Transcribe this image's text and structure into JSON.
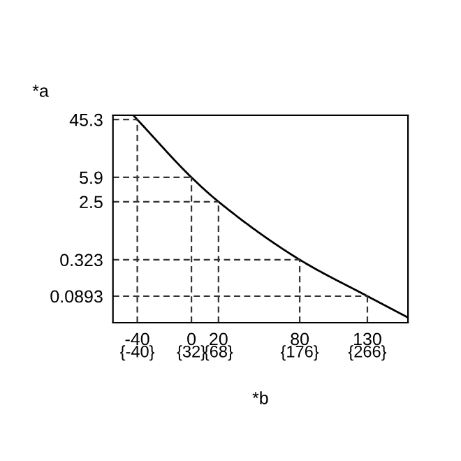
{
  "chart_data": {
    "type": "line",
    "xlabel": "*b",
    "ylabel": "*a",
    "x": [
      -43,
      -40,
      0,
      20,
      80,
      130,
      160
    ],
    "series": [
      {
        "color": "#000000",
        "values": [
          52.8,
          45.3,
          5.9,
          2.5,
          0.323,
          0.0893,
          0.042
        ]
      }
    ],
    "log": "y",
    "xlim": [
      -58,
      160
    ],
    "ylim": [
      0.035,
      52.8
    ],
    "xticks": [
      -40,
      0,
      20,
      80,
      130
    ],
    "x2lim": [
      -72.4,
      320
    ],
    "x2ticks": [
      {
        "value": -40,
        "label": "{-40}"
      },
      {
        "value": 32,
        "label": "{32}"
      },
      {
        "value": 68,
        "label": "{68}"
      },
      {
        "value": 176,
        "label": "{176}"
      },
      {
        "value": 266,
        "label": "{266}"
      }
    ],
    "yticks": [
      45.3,
      5.9,
      2.5,
      0.323,
      0.0893
    ],
    "ref_lines": [
      {
        "axis": "y",
        "value": 45.3,
        "color": "#333333",
        "line_style": "dashed"
      },
      {
        "axis": "y",
        "value": 5.9,
        "color": "#333333",
        "line_style": "dashed"
      },
      {
        "axis": "y",
        "value": 2.5,
        "color": "#333333",
        "line_style": "dashed"
      },
      {
        "axis": "y",
        "value": 0.323,
        "color": "#333333",
        "line_style": "dashed"
      },
      {
        "axis": "y",
        "value": 0.0893,
        "color": "#333333",
        "line_style": "dashed"
      },
      {
        "axis": "x",
        "value": -40,
        "color": "#333333",
        "line_style": "dashed"
      },
      {
        "axis": "x",
        "value": 0,
        "color": "#333333",
        "line_style": "dashed"
      },
      {
        "axis": "x",
        "value": 20,
        "color": "#333333",
        "line_style": "dashed"
      },
      {
        "axis": "x",
        "value": 80,
        "color": "#333333",
        "line_style": "dashed"
      },
      {
        "axis": "x",
        "value": 130,
        "color": "#333333",
        "line_style": "dashed"
      }
    ],
    "grid": false,
    "legend": false,
    "marker": "none",
    "line_style": "solid"
  }
}
